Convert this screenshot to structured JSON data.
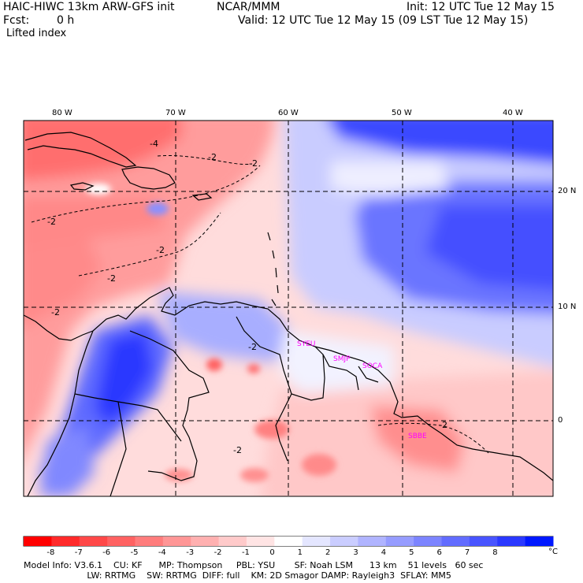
{
  "header": {
    "model_title": "HAIC-HIWC 13km ARW-GFS init",
    "org": "NCAR/MMM",
    "init_time": "Init: 12 UTC Tue 12 May 15",
    "fcst_label": "Fcst:",
    "fcst_value": "0 h",
    "valid_time": "Valid: 12 UTC Tue 12 May 15 (09 LST Tue 12 May 15)",
    "field_name": "Lifted index"
  },
  "map": {
    "lon_labels": [
      "80 W",
      "70 W",
      "60 W",
      "50 W",
      "40 W"
    ],
    "lat_labels": [
      "20 N",
      "10 N",
      "0"
    ],
    "contour_labels": [
      "-4",
      "-2",
      "-2",
      "-2",
      "-2",
      "-2",
      "-2",
      "-2",
      "-2",
      "-2"
    ],
    "station_labels": [
      "SYEU",
      "SMJP",
      "SOCA",
      "SBBE"
    ],
    "station_color": "#ff00ff",
    "gridline_style": "dashed"
  },
  "colorbar": {
    "tick_labels": [
      "-8",
      "-7",
      "-6",
      "-5",
      "-4",
      "-3",
      "-2",
      "-1",
      "0",
      "1",
      "2",
      "3",
      "4",
      "5",
      "6",
      "7",
      "8"
    ],
    "unit": "°C",
    "colors": [
      "#ff0000",
      "#ff2a2a",
      "#ff4848",
      "#ff6262",
      "#ff7c7c",
      "#ff9696",
      "#ffb0b0",
      "#ffcaca",
      "#ffe4e4",
      "#ffffff",
      "#e4e6ff",
      "#cacdff",
      "#b0b4ff",
      "#969cff",
      "#7c84ff",
      "#626cff",
      "#4854ff",
      "#2a38ff",
      "#0018ff"
    ]
  },
  "model_info": {
    "line1": "Model Info: V3.6.1    CU: KF      MP: Thompson     PBL: YSU       SF: Noah LSM      13 km    51 levels   60 sec",
    "line2": "                       LW: RRTMG    SW: RRTMG  DIFF: full    KM: 2D Smagor DAMP: Rayleigh3  SFLAY: MM5"
  }
}
